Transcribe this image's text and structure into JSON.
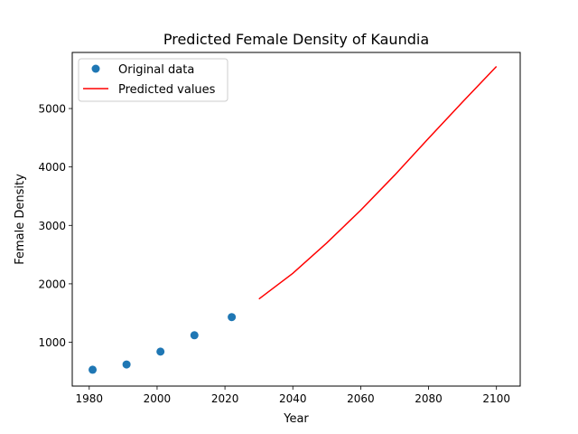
{
  "chart_data": {
    "type": "line",
    "title": "Predicted Female Density of Kaundia",
    "xlabel": "Year",
    "ylabel": "Female Density",
    "xlim": [
      1975,
      2107
    ],
    "ylim": [
      250,
      5960
    ],
    "xticks": [
      1980,
      2000,
      2020,
      2040,
      2060,
      2080,
      2100
    ],
    "yticks": [
      1000,
      2000,
      3000,
      4000,
      5000
    ],
    "grid": false,
    "legend_position": "upper-left",
    "series": [
      {
        "name": "Original data",
        "kind": "scatter",
        "color": "#1f77b4",
        "x": [
          1981,
          1991,
          2001,
          2011,
          2022
        ],
        "y": [
          530,
          620,
          840,
          1120,
          1430
        ]
      },
      {
        "name": "Predicted values",
        "kind": "line",
        "color": "#ff0000",
        "x": [
          2030,
          2040,
          2050,
          2060,
          2070,
          2080,
          2090,
          2100
        ],
        "y": [
          1740,
          2180,
          2700,
          3260,
          3860,
          4490,
          5110,
          5720
        ]
      }
    ]
  }
}
